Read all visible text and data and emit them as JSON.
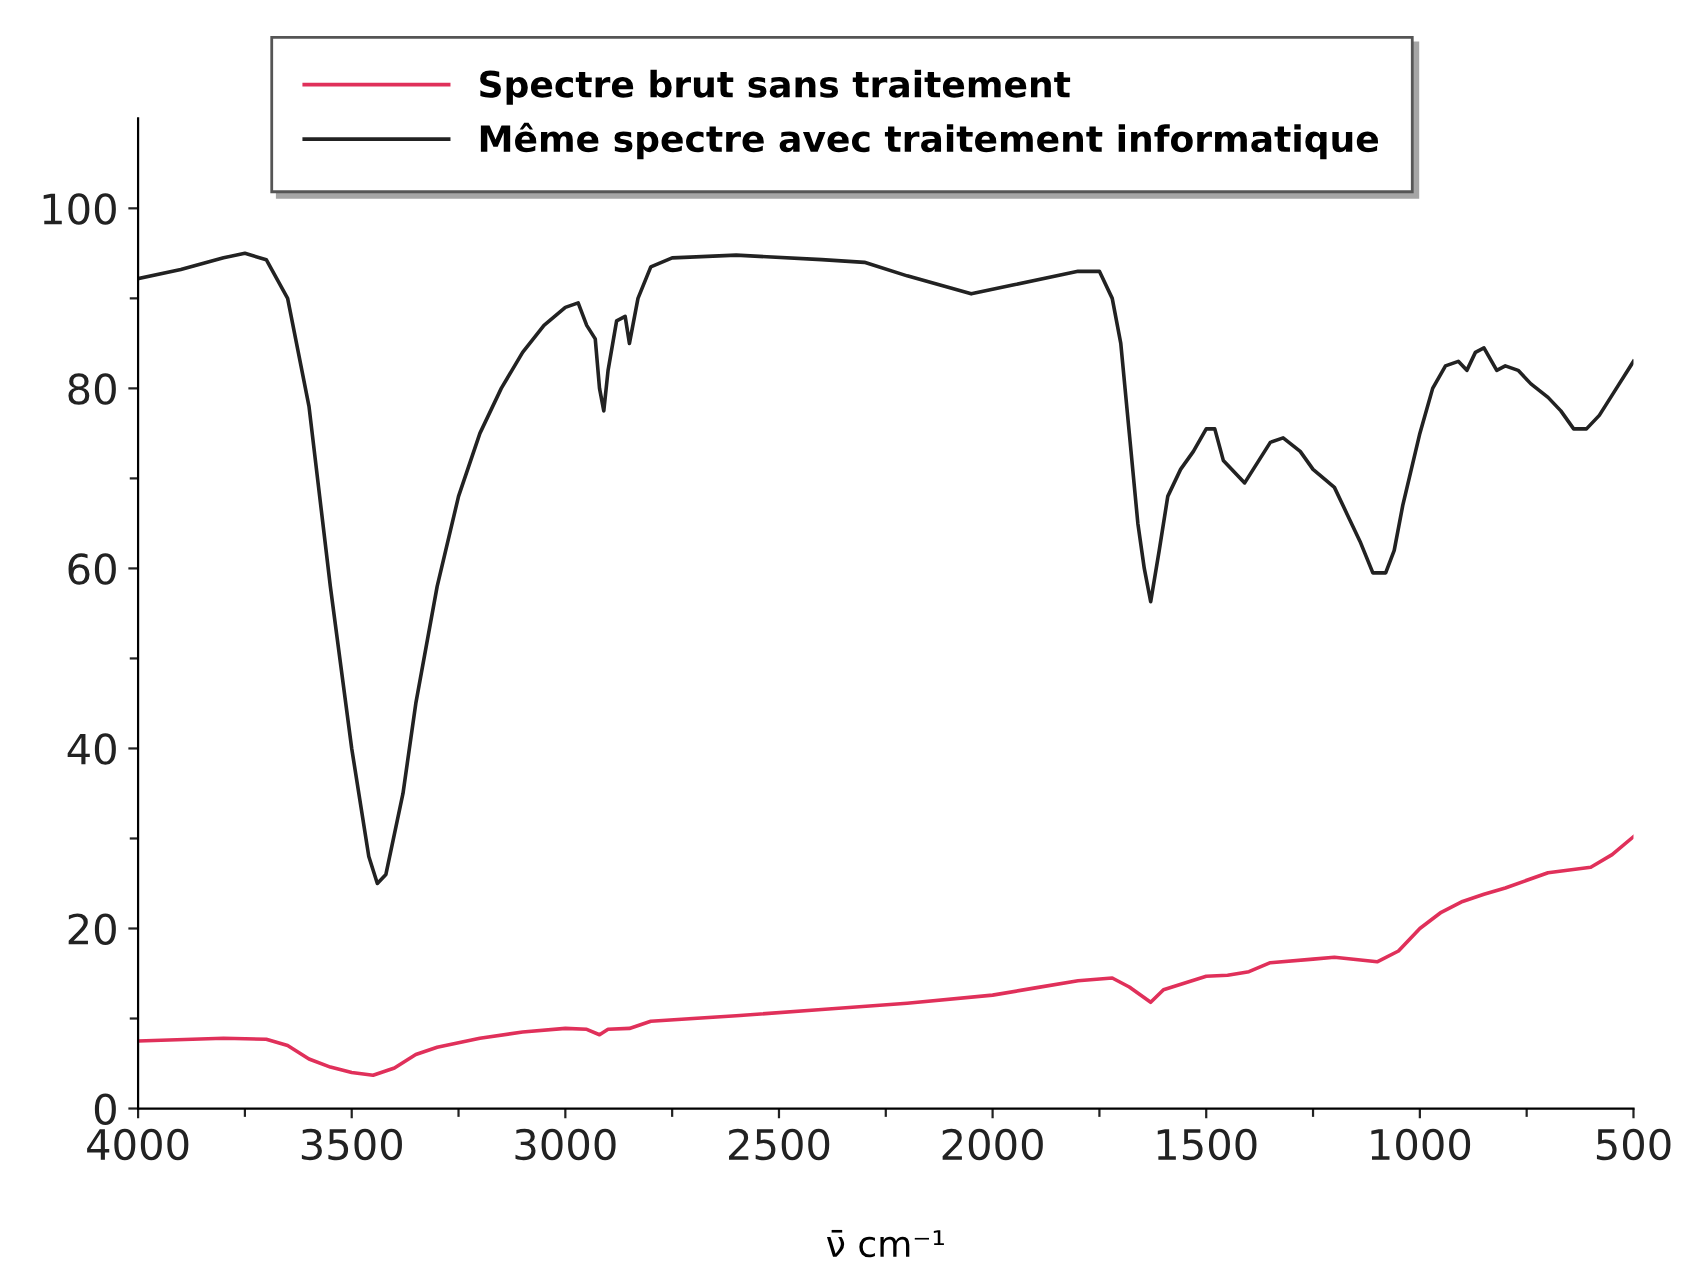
{
  "chart_data": {
    "type": "line",
    "xlabel": "ν̄ cm⁻¹",
    "xlim": [
      4000,
      500
    ],
    "xticks": [
      4000,
      {
        "value": 3750,
        "label": null
      },
      3500,
      {
        "value": 3250,
        "label": null
      },
      3000,
      {
        "value": 2750,
        "label": null
      },
      2500,
      {
        "value": 2250,
        "label": null
      },
      2000,
      {
        "value": 1750,
        "label": null
      },
      1500,
      {
        "value": 1250,
        "label": null
      },
      1000,
      {
        "value": 750,
        "label": null
      },
      500
    ],
    "ylim": [
      0,
      110
    ],
    "yticks": [
      0,
      {
        "value": 10,
        "label": null
      },
      20,
      {
        "value": 30,
        "label": null
      },
      40,
      {
        "value": 50,
        "label": null
      },
      60,
      {
        "value": 70,
        "label": null
      },
      80,
      {
        "value": 90,
        "label": null
      },
      100
    ],
    "grid": false,
    "legend": "top",
    "line_style": "solid",
    "marker": "none",
    "series": [
      {
        "name": "Spectre brut sans traitement",
        "color": "#e0305a",
        "x": [
          4000,
          3800,
          3700,
          3650,
          3600,
          3550,
          3500,
          3450,
          3400,
          3350,
          3300,
          3200,
          3100,
          3000,
          2950,
          2920,
          2900,
          2850,
          2800,
          2600,
          2400,
          2200,
          2000,
          1900,
          1800,
          1720,
          1680,
          1630,
          1600,
          1500,
          1450,
          1400,
          1350,
          1250,
          1200,
          1100,
          1050,
          1000,
          950,
          900,
          850,
          800,
          700,
          600,
          550,
          500
        ],
        "values": [
          7.5,
          7.8,
          7.7,
          7,
          5.5,
          4.6,
          4,
          3.7,
          4.5,
          6,
          6.8,
          7.8,
          8.5,
          8.9,
          8.8,
          8.2,
          8.8,
          8.9,
          9.7,
          10.3,
          11,
          11.7,
          12.6,
          13.4,
          14.2,
          14.5,
          13.5,
          11.8,
          13.2,
          14.7,
          14.8,
          15.2,
          16.2,
          16.6,
          16.8,
          16.3,
          17.5,
          20,
          21.8,
          23,
          23.8,
          24.5,
          26.2,
          26.8,
          28.2,
          30.2
        ]
      },
      {
        "name": "Même spectre avec traitement informatique",
        "color": "#222222",
        "x": [
          4000,
          3900,
          3800,
          3750,
          3700,
          3650,
          3600,
          3550,
          3500,
          3460,
          3440,
          3420,
          3380,
          3350,
          3300,
          3250,
          3200,
          3150,
          3100,
          3050,
          3000,
          2970,
          2950,
          2930,
          2920,
          2910,
          2900,
          2880,
          2860,
          2850,
          2830,
          2800,
          2750,
          2600,
          2400,
          2300,
          2200,
          2050,
          1950,
          1800,
          1750,
          1720,
          1700,
          1680,
          1660,
          1645,
          1630,
          1610,
          1590,
          1560,
          1530,
          1500,
          1480,
          1460,
          1440,
          1410,
          1390,
          1350,
          1320,
          1280,
          1250,
          1200,
          1170,
          1140,
          1110,
          1080,
          1060,
          1040,
          1000,
          970,
          940,
          910,
          890,
          870,
          850,
          820,
          800,
          770,
          740,
          700,
          670,
          640,
          610,
          580,
          540,
          500
        ],
        "values": [
          92.2,
          93.2,
          94.5,
          95,
          94.3,
          90,
          78,
          58,
          40,
          28,
          25,
          26,
          35,
          45,
          58,
          68,
          75,
          80,
          84,
          87,
          89,
          89.5,
          87,
          85.5,
          80,
          77.5,
          82,
          87.5,
          88,
          85,
          90,
          93.5,
          94.5,
          94.8,
          94.3,
          94,
          92.5,
          90.5,
          91.5,
          93,
          93,
          90,
          85,
          75,
          65,
          60,
          56.3,
          62,
          68,
          71,
          73,
          75.5,
          75.5,
          72,
          71,
          69.5,
          71,
          74,
          74.5,
          73,
          71,
          69,
          66,
          63,
          59.5,
          59.5,
          62,
          67,
          75,
          80,
          82.5,
          83,
          82,
          84,
          84.5,
          82,
          82.5,
          82,
          80.5,
          79,
          77.5,
          75.5,
          75.5,
          77,
          80,
          83
        ]
      }
    ]
  }
}
